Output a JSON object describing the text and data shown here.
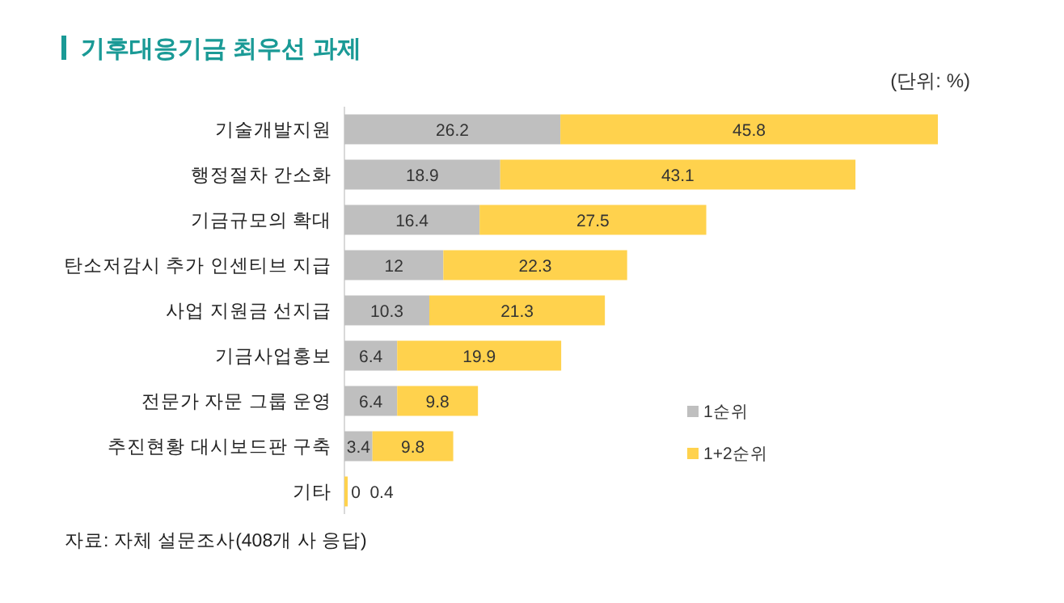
{
  "chart_data": {
    "type": "bar",
    "orientation": "horizontal",
    "stacked": true,
    "title": "기후대응기금 최우선 과제",
    "subtitle": "(단위: %)",
    "categories": [
      "기술개발지원",
      "행정절차 간소화",
      "기금규모의 확대",
      "탄소저감시 추가 인센티브 지급",
      "사업 지원금 선지급",
      "기금사업홍보",
      "전문가 자문 그룹 운영",
      "추진현황 대시보드판 구축",
      "기타"
    ],
    "series": [
      {
        "name": "1순위",
        "color": "#bfbfbf",
        "values": [
          26.2,
          18.9,
          16.4,
          12,
          10.3,
          6.4,
          6.4,
          3.4,
          0
        ]
      },
      {
        "name": "1+2순위",
        "color": "#ffd24d",
        "values": [
          45.8,
          43.1,
          27.5,
          22.3,
          21.3,
          19.9,
          9.8,
          9.8,
          0.4
        ]
      }
    ],
    "data_labels": true,
    "legend": "bottom right",
    "annotations": [
      "자료: 자체 설문조사(408개 사 응답)"
    ]
  }
}
